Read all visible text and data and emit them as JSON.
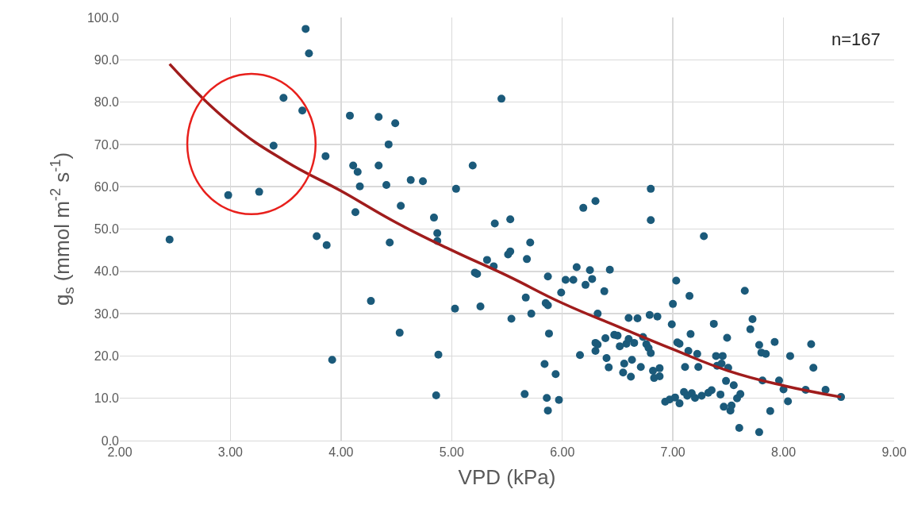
{
  "chart_data": {
    "type": "scatter",
    "xlabel": "VPD (kPa)",
    "ylabel": "g$_{s}$ (mmol m$^{-2}$ s$^{-1}$)",
    "annotations": [
      "n=167"
    ],
    "xlim": [
      2,
      9
    ],
    "ylim": [
      0,
      100
    ],
    "xticks": [
      {
        "value": 2,
        "label": "2.00"
      },
      {
        "value": 3,
        "label": "3.00"
      },
      {
        "value": 4,
        "label": "4.00"
      },
      {
        "value": 5,
        "label": "5.00"
      },
      {
        "value": 6,
        "label": "6.00"
      },
      {
        "value": 7,
        "label": "7.00"
      },
      {
        "value": 8,
        "label": "8.00"
      },
      {
        "value": 9,
        "label": "9.00"
      }
    ],
    "yticks": [
      {
        "value": 0,
        "label": "0.0"
      },
      {
        "value": 10,
        "label": "10.0"
      },
      {
        "value": 20,
        "label": "20.0"
      },
      {
        "value": 30,
        "label": "30.0"
      },
      {
        "value": 40,
        "label": "40.0"
      },
      {
        "value": 50,
        "label": "50.0"
      },
      {
        "value": 60,
        "label": "60.0"
      },
      {
        "value": 70,
        "label": "70.0"
      },
      {
        "value": 80,
        "label": "80.0"
      },
      {
        "value": 90,
        "label": "90.0"
      },
      {
        "value": 100,
        "label": "100.0"
      }
    ],
    "grid": true,
    "marker": "circle",
    "series": [
      {
        "color": "#1b5a7a",
        "x": [
          2.45,
          2.98,
          3.26,
          3.39,
          3.48,
          3.65,
          3.68,
          3.71,
          3.78,
          3.86,
          3.87,
          3.92,
          4.08,
          4.11,
          4.13,
          4.15,
          4.17,
          4.27,
          4.34,
          4.34,
          4.41,
          4.43,
          4.44,
          4.49,
          4.53,
          4.54,
          4.63,
          4.74,
          4.84,
          4.87,
          4.87,
          4.88,
          4.86,
          5.03,
          5.04,
          5.19,
          5.21,
          5.23,
          5.26,
          5.32,
          5.38,
          5.39,
          5.45,
          5.51,
          5.53,
          5.53,
          5.54,
          5.66,
          5.67,
          5.68,
          5.71,
          5.72,
          5.84,
          5.85,
          5.86,
          5.87,
          5.87,
          5.87,
          5.88,
          5.94,
          5.97,
          5.99,
          6.03,
          6.1,
          6.13,
          6.16,
          6.19,
          6.21,
          6.25,
          6.27,
          6.3,
          6.3,
          6.3,
          6.32,
          6.32,
          6.38,
          6.39,
          6.4,
          6.42,
          6.43,
          6.47,
          6.5,
          6.52,
          6.55,
          6.56,
          6.58,
          6.6,
          6.6,
          6.62,
          6.63,
          6.65,
          6.68,
          6.71,
          6.73,
          6.76,
          6.78,
          6.79,
          6.8,
          6.8,
          6.8,
          6.82,
          6.83,
          6.86,
          6.88,
          6.88,
          6.93,
          6.97,
          6.99,
          7.0,
          7.02,
          7.03,
          7.04,
          7.06,
          7.06,
          7.1,
          7.11,
          7.13,
          7.14,
          7.15,
          7.16,
          7.17,
          7.2,
          7.22,
          7.23,
          7.26,
          7.28,
          7.32,
          7.35,
          7.37,
          7.39,
          7.4,
          7.43,
          7.44,
          7.45,
          7.46,
          7.48,
          7.49,
          7.5,
          7.52,
          7.53,
          7.55,
          7.58,
          7.6,
          7.61,
          7.65,
          7.7,
          7.72,
          7.78,
          7.78,
          7.8,
          7.81,
          7.84,
          7.88,
          7.92,
          7.96,
          8.0,
          8.04,
          8.06,
          8.2,
          8.25,
          8.27,
          8.38,
          8.52
        ],
        "values": [
          47.5,
          58,
          58.8,
          69.7,
          81,
          78,
          97.3,
          91.5,
          48.3,
          67.2,
          46.2,
          19.1,
          76.8,
          65,
          54,
          63.5,
          60.1,
          33,
          65,
          76.5,
          60.4,
          70,
          46.8,
          75,
          25.5,
          55.5,
          61.6,
          61.3,
          52.7,
          49,
          47.2,
          20.3,
          10.7,
          31.2,
          59.5,
          65,
          39.7,
          39.4,
          31.7,
          42.7,
          41.2,
          51.3,
          80.8,
          44,
          44.7,
          52.3,
          28.8,
          11,
          33.8,
          42.9,
          46.8,
          30,
          18.1,
          32.5,
          10.1,
          32,
          38.8,
          7.1,
          25.3,
          15.7,
          9.6,
          35,
          38,
          38,
          41,
          20.2,
          55,
          36.8,
          40.3,
          38.2,
          56.6,
          23.1,
          21.2,
          30,
          22.7,
          35.3,
          24.2,
          19.5,
          17.3,
          40.4,
          25,
          24.8,
          22.3,
          16.1,
          18.2,
          22.9,
          29,
          24,
          15.1,
          19.1,
          23.1,
          28.9,
          17.4,
          24.5,
          22.8,
          21.9,
          29.7,
          59.5,
          52.1,
          20.7,
          16.5,
          14.8,
          29.3,
          17.1,
          15.2,
          9.2,
          9.7,
          27.5,
          32.3,
          10.2,
          37.8,
          23.2,
          8.8,
          22.9,
          11.5,
          17.4,
          10.6,
          21.2,
          34.2,
          25.2,
          11.2,
          10.1,
          20.5,
          17.4,
          10.6,
          48.3,
          11.3,
          11.9,
          27.6,
          20,
          17.7,
          10.9,
          18.2,
          20,
          8,
          14.1,
          24.3,
          17.2,
          7.1,
          8.3,
          13.1,
          10,
          3,
          11,
          35.4,
          26.3,
          28.7,
          22.6,
          2,
          20.8,
          14.2,
          20.5,
          7,
          23.3,
          14.2,
          12.1,
          9.3,
          20,
          12,
          22.8,
          17.2,
          12,
          10.3
        ]
      },
      {
        "type": "line",
        "color": "#a01c1c",
        "marker": "none",
        "x": [
          2.45,
          3,
          3.5,
          4,
          4.5,
          5,
          5.5,
          6,
          6.5,
          7,
          7.5,
          8,
          8.52
        ],
        "values": [
          89,
          75,
          66,
          59,
          51.5,
          45,
          39,
          32.5,
          27,
          21.6,
          16.5,
          13,
          10.3
        ]
      }
    ]
  }
}
